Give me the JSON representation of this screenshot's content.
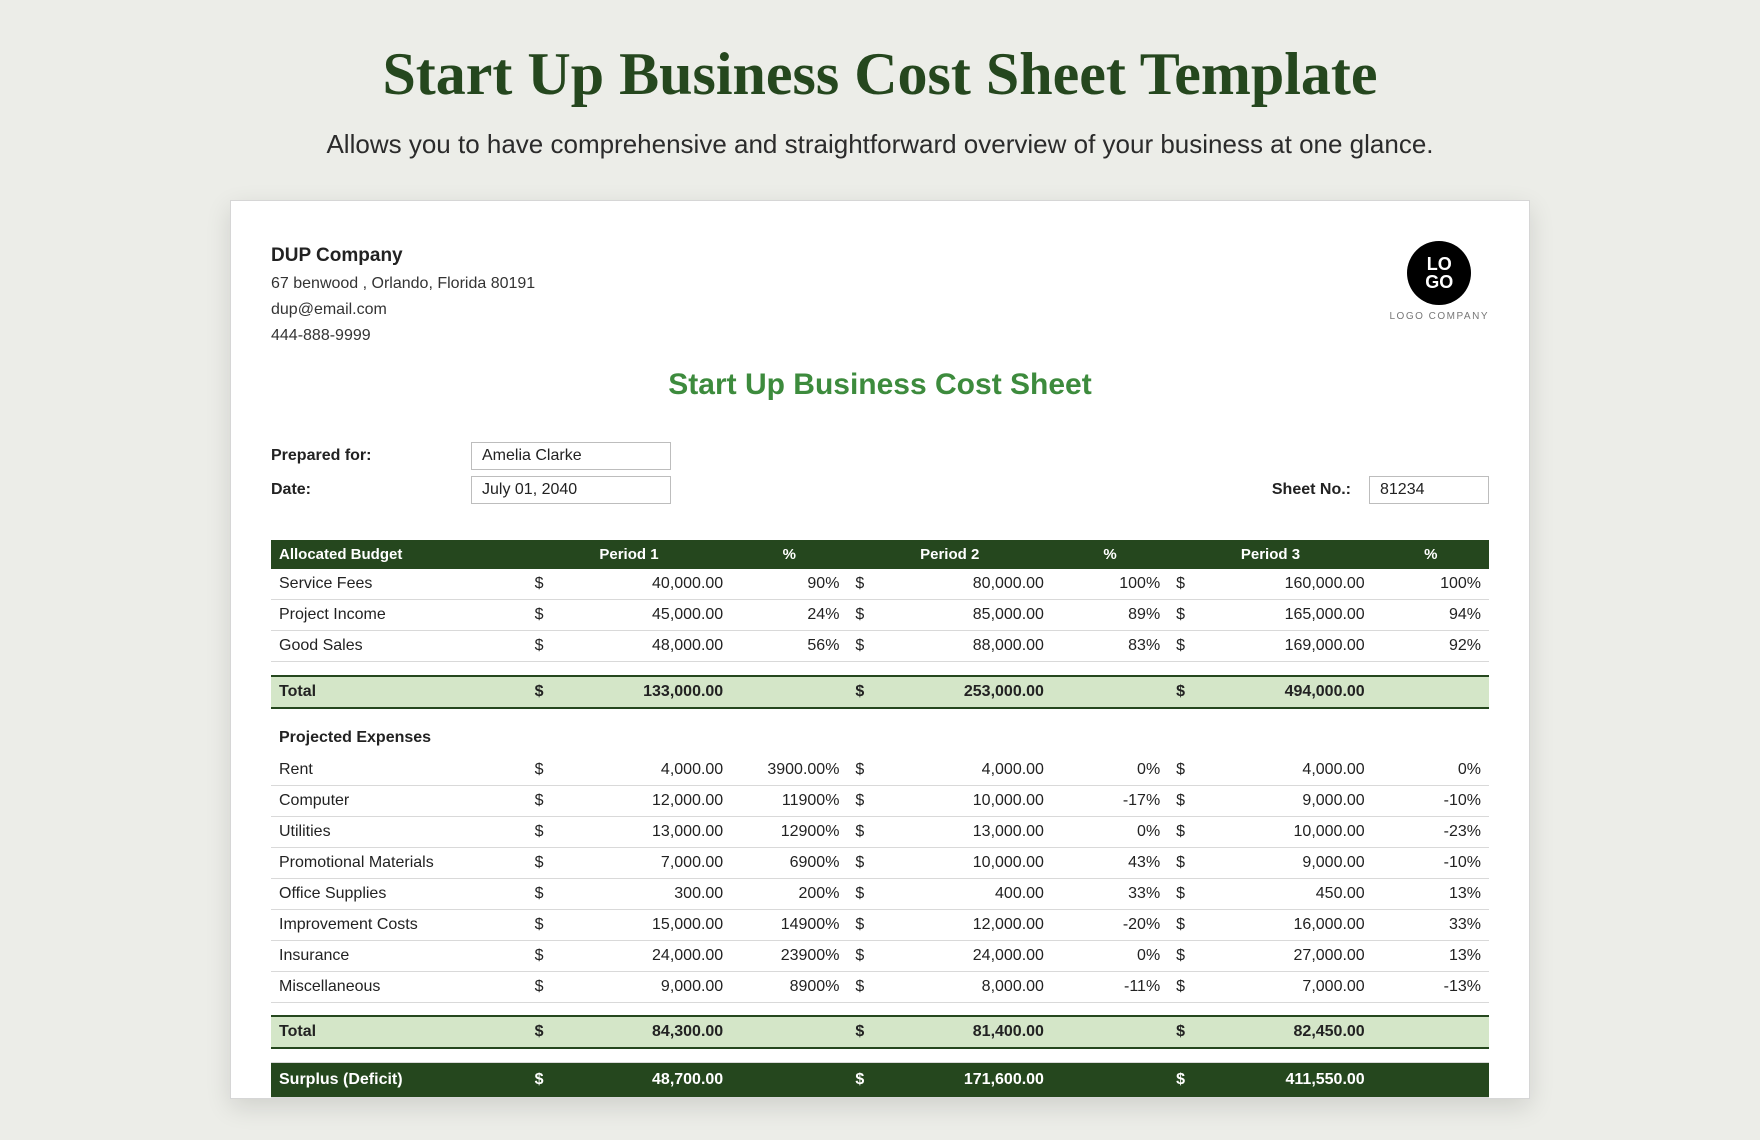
{
  "page": {
    "title": "Start Up Business Cost Sheet Template",
    "subtitle": "Allows you to have comprehensive and straightforward overview of your business at one glance.",
    "title_color": "#25471e",
    "background_color": "#ecede8"
  },
  "company": {
    "name": "DUP Company",
    "address": "67 benwood , Orlando, Florida 80191",
    "email": "dup@email.com",
    "phone": "444-888-9999"
  },
  "logo": {
    "text": "LO\nGO",
    "label": "LOGO COMPANY"
  },
  "doc_title": "Start Up Business Cost Sheet",
  "meta": {
    "prepared_for_label": "Prepared for:",
    "prepared_for": "Amelia Clarke",
    "date_label": "Date:",
    "date": "July 01, 2040",
    "sheet_no_label": "Sheet No.:",
    "sheet_no": "81234"
  },
  "headers": {
    "allocated": "Allocated Budget",
    "p1": "Period 1",
    "p2": "Period 2",
    "p3": "Period 3",
    "pct": "%"
  },
  "budget_rows": [
    {
      "label": "Service Fees",
      "p1": "40,000.00",
      "p1p": "90%",
      "p2": "80,000.00",
      "p2p": "100%",
      "p3": "160,000.00",
      "p3p": "100%"
    },
    {
      "label": "Project Income",
      "p1": "45,000.00",
      "p1p": "24%",
      "p2": "85,000.00",
      "p2p": "89%",
      "p3": "165,000.00",
      "p3p": "94%"
    },
    {
      "label": "Good Sales",
      "p1": "48,000.00",
      "p1p": "56%",
      "p2": "88,000.00",
      "p2p": "83%",
      "p3": "169,000.00",
      "p3p": "92%"
    }
  ],
  "budget_total": {
    "label": "Total",
    "p1": "133,000.00",
    "p2": "253,000.00",
    "p3": "494,000.00"
  },
  "expenses_title": "Projected Expenses",
  "expense_rows": [
    {
      "label": "Rent",
      "p1": "4,000.00",
      "p1p": "3900.00%",
      "p2": "4,000.00",
      "p2p": "0%",
      "p3": "4,000.00",
      "p3p": "0%"
    },
    {
      "label": "Computer",
      "p1": "12,000.00",
      "p1p": "11900%",
      "p2": "10,000.00",
      "p2p": "-17%",
      "p3": "9,000.00",
      "p3p": "-10%"
    },
    {
      "label": "Utilities",
      "p1": "13,000.00",
      "p1p": "12900%",
      "p2": "13,000.00",
      "p2p": "0%",
      "p3": "10,000.00",
      "p3p": "-23%"
    },
    {
      "label": "Promotional Materials",
      "p1": "7,000.00",
      "p1p": "6900%",
      "p2": "10,000.00",
      "p2p": "43%",
      "p3": "9,000.00",
      "p3p": "-10%"
    },
    {
      "label": "Office Supplies",
      "p1": "300.00",
      "p1p": "200%",
      "p2": "400.00",
      "p2p": "33%",
      "p3": "450.00",
      "p3p": "13%"
    },
    {
      "label": "Improvement Costs",
      "p1": "15,000.00",
      "p1p": "14900%",
      "p2": "12,000.00",
      "p2p": "-20%",
      "p3": "16,000.00",
      "p3p": "33%"
    },
    {
      "label": "Insurance",
      "p1": "24,000.00",
      "p1p": "23900%",
      "p2": "24,000.00",
      "p2p": "0%",
      "p3": "27,000.00",
      "p3p": "13%"
    },
    {
      "label": "Miscellaneous",
      "p1": "9,000.00",
      "p1p": "8900%",
      "p2": "8,000.00",
      "p2p": "-11%",
      "p3": "7,000.00",
      "p3p": "-13%"
    }
  ],
  "expense_total": {
    "label": "Total",
    "p1": "84,300.00",
    "p2": "81,400.00",
    "p3": "82,450.00"
  },
  "surplus": {
    "label": "Surplus (Deficit)",
    "p1": "48,700.00",
    "p2": "171,600.00",
    "p3": "411,550.00"
  },
  "colors": {
    "header_bg": "#25471e",
    "total_bg": "#d4e6c8",
    "doc_title": "#3d8b3d",
    "border": "#d9d9d9"
  }
}
